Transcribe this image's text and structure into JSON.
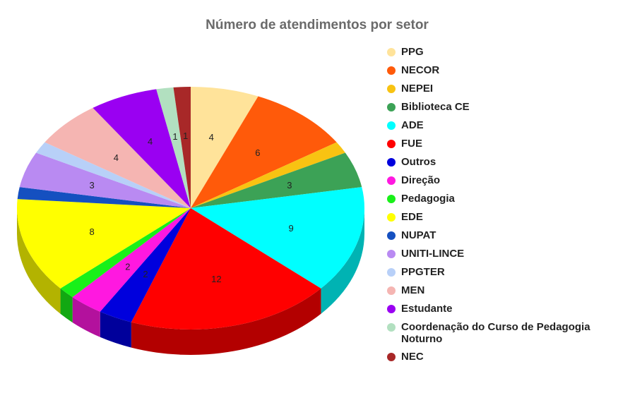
{
  "chart_data": {
    "type": "pie",
    "title": "Número de atendimentos por setor",
    "legend_position": "right",
    "slices": [
      {
        "label": "PPG",
        "value": 4,
        "color": "#FFE39A",
        "data_label": "4"
      },
      {
        "label": "NECOR",
        "value": 6,
        "color": "#FF5A0A",
        "data_label": "6"
      },
      {
        "label": "NEPEI",
        "value": 1,
        "color": "#F8C312",
        "data_label": ""
      },
      {
        "label": "Biblioteca CE",
        "value": 3,
        "color": "#3CA256",
        "data_label": "3"
      },
      {
        "label": "ADE",
        "value": 9,
        "color": "#00FFFF",
        "data_label": "9"
      },
      {
        "label": "FUE",
        "value": 12,
        "color": "#FF0000",
        "data_label": "12"
      },
      {
        "label": "Outros",
        "value": 2,
        "color": "#0000DD",
        "data_label": "2"
      },
      {
        "label": "Direção",
        "value": 2,
        "color": "#FF18E0",
        "data_label": "2"
      },
      {
        "label": "Pedagogia",
        "value": 1,
        "color": "#19F019",
        "data_label": ""
      },
      {
        "label": "EDE",
        "value": 8,
        "color": "#FFFF00",
        "data_label": "8"
      },
      {
        "label": "NUPAT",
        "value": 1,
        "color": "#1550C0",
        "data_label": ""
      },
      {
        "label": "UNITI-LINCE",
        "value": 3,
        "color": "#B98AF2",
        "data_label": "3"
      },
      {
        "label": "PPGTER",
        "value": 1,
        "color": "#B8D0F8",
        "data_label": ""
      },
      {
        "label": "MEN",
        "value": 4,
        "color": "#F5B5B2",
        "data_label": "4"
      },
      {
        "label": "Estudante",
        "value": 4,
        "color": "#9A00F2",
        "data_label": "4"
      },
      {
        "label": "Coordenação do Curso de Pedagogia Noturno",
        "value": 1,
        "color": "#B2E0C0",
        "data_label": "1"
      },
      {
        "label": "NEC",
        "value": 1,
        "color": "#A82828",
        "data_label": "1"
      }
    ]
  }
}
